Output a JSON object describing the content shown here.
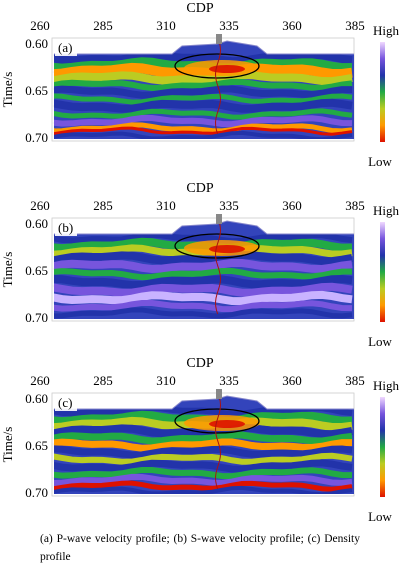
{
  "figure": {
    "x_axis_title": "CDP",
    "x_ticks": [
      "260",
      "285",
      "310",
      "335",
      "360",
      "385"
    ],
    "y_axis_title": "Time/s",
    "y_ticks": [
      "0.60",
      "0.65",
      "0.70"
    ],
    "colorbar_high": "High",
    "colorbar_low": "Low",
    "colorbar_colors": [
      "#f0d8ff",
      "#7755dd",
      "#2233aa",
      "#22aa44",
      "#bbcc22",
      "#ff9900",
      "#dd1100"
    ],
    "panels": [
      {
        "label": "(a)"
      },
      {
        "label": "(b)"
      },
      {
        "label": "(c)"
      }
    ],
    "caption": "(a) P-wave velocity profile; (b) S-wave velocity profile; (c) Density profile"
  }
}
